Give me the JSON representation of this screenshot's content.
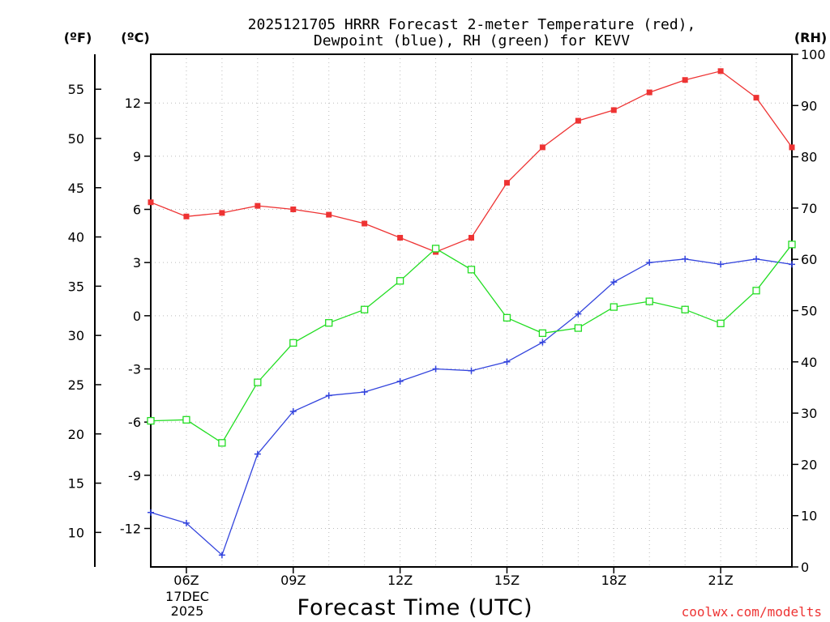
{
  "chart_data": {
    "type": "line",
    "title_line1": "2025121705 HRRR Forecast 2-meter Temperature (red),",
    "title_line2": "Dewpoint (blue), RH (green) for KEVV",
    "xlabel": "Forecast Time (UTC)",
    "credit": "coolwx.com/modelts",
    "unit_f": "(ºF)",
    "unit_c": "(ºC)",
    "unit_rh": "(RH)",
    "date_line1": "17DEC",
    "date_line2": "2025",
    "x": [
      5,
      6,
      7,
      8,
      9,
      10,
      11,
      12,
      13,
      14,
      15,
      16,
      17,
      18,
      19,
      20,
      21,
      22,
      23
    ],
    "xlim": [
      5,
      23
    ],
    "x_ticks": [
      6,
      9,
      12,
      15,
      18,
      21
    ],
    "x_tick_labels": [
      "06Z",
      "09Z",
      "12Z",
      "15Z",
      "18Z",
      "21Z"
    ],
    "ylim_c": [
      -14.17,
      14.75
    ],
    "c_ticks": [
      -12,
      -9,
      -6,
      -3,
      0,
      3,
      6,
      9,
      12
    ],
    "c_tick_labels": [
      "-12",
      "-9",
      "-6",
      "-3",
      "0",
      "3",
      "6",
      "9",
      "12"
    ],
    "f_ticks": [
      10,
      15,
      20,
      25,
      30,
      35,
      40,
      45,
      50,
      55
    ],
    "f_tick_labels": [
      "10",
      "15",
      "20",
      "25",
      "30",
      "35",
      "40",
      "45",
      "50",
      "55"
    ],
    "ylim_rh": [
      0,
      100
    ],
    "rh_ticks": [
      0,
      10,
      20,
      30,
      40,
      50,
      60,
      70,
      80,
      90,
      100
    ],
    "rh_tick_labels": [
      "0",
      "10",
      "20",
      "30",
      "40",
      "50",
      "60",
      "70",
      "80",
      "90",
      "100"
    ],
    "series": [
      {
        "name": "Temperature",
        "axis": "C",
        "color": "#ee3333",
        "marker": "filled-square",
        "values": [
          6.4,
          5.6,
          5.8,
          6.2,
          6.0,
          5.7,
          5.2,
          4.4,
          3.6,
          4.4,
          7.5,
          9.5,
          11.0,
          11.6,
          12.6,
          13.3,
          13.8,
          12.3,
          9.5
        ]
      },
      {
        "name": "Dewpoint",
        "axis": "C",
        "color": "#3344dd",
        "marker": "plus",
        "values": [
          -11.1,
          -11.7,
          -13.5,
          -7.8,
          -5.4,
          -4.5,
          -4.3,
          -3.7,
          -3.0,
          -3.1,
          -2.6,
          -1.5,
          0.1,
          1.9,
          3.0,
          3.2,
          2.9,
          3.2,
          2.9
        ]
      },
      {
        "name": "RH",
        "axis": "RH",
        "color": "#22dd22",
        "marker": "open-square",
        "values": [
          28.5,
          28.7,
          24.2,
          36.0,
          43.7,
          47.6,
          50.2,
          55.8,
          62.1,
          58.0,
          48.6,
          45.6,
          46.6,
          50.7,
          51.8,
          50.2,
          47.5,
          53.9,
          62.9
        ]
      }
    ]
  }
}
